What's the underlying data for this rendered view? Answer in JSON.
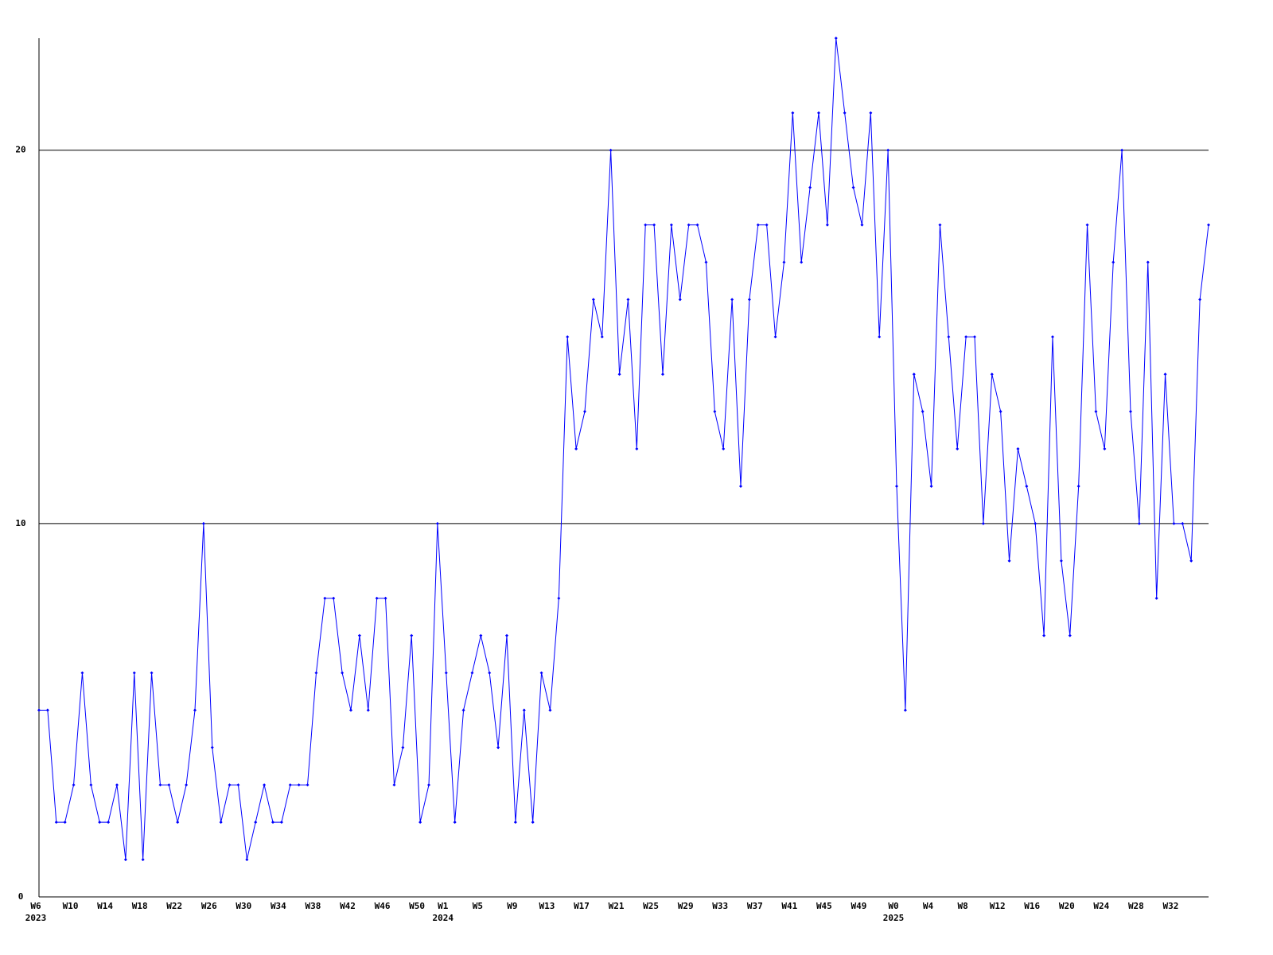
{
  "chart_data": {
    "type": "line",
    "categories": [
      "W6",
      null,
      null,
      null,
      "W10",
      null,
      null,
      null,
      "W14",
      null,
      null,
      null,
      "W18",
      null,
      null,
      null,
      "W22",
      null,
      null,
      null,
      "W26",
      null,
      null,
      null,
      "W30",
      null,
      null,
      null,
      "W34",
      null,
      null,
      null,
      "W38",
      null,
      null,
      null,
      "W42",
      null,
      null,
      null,
      "W46",
      null,
      null,
      null,
      "W50",
      null,
      null,
      "W1",
      null,
      null,
      null,
      "W5",
      null,
      null,
      null,
      "W9",
      null,
      null,
      null,
      "W13",
      null,
      null,
      null,
      "W17",
      null,
      null,
      null,
      "W21",
      null,
      null,
      null,
      "W25",
      null,
      null,
      null,
      "W29",
      null,
      null,
      null,
      "W33",
      null,
      null,
      null,
      "W37",
      null,
      null,
      null,
      "W41",
      null,
      null,
      null,
      "W45",
      null,
      null,
      null,
      "W49",
      null,
      null,
      null,
      "W0",
      null,
      null,
      null,
      "W4",
      null,
      null,
      null,
      "W8",
      null,
      null,
      null,
      "W12",
      null,
      null,
      null,
      "W16",
      null,
      null,
      null,
      "W20",
      null,
      null,
      null,
      "W24",
      null,
      null,
      null,
      "W28",
      null,
      null,
      null,
      "W32",
      null,
      null,
      null,
      null
    ],
    "years": [
      "2023",
      null,
      null,
      null,
      null,
      null,
      null,
      null,
      null,
      null,
      null,
      null,
      null,
      null,
      null,
      null,
      null,
      null,
      null,
      null,
      null,
      null,
      null,
      null,
      null,
      null,
      null,
      null,
      null,
      null,
      null,
      null,
      null,
      null,
      null,
      null,
      null,
      null,
      null,
      null,
      null,
      null,
      null,
      null,
      null,
      null,
      null,
      "2024",
      null,
      null,
      null,
      null,
      null,
      null,
      null,
      null,
      null,
      null,
      null,
      null,
      null,
      null,
      null,
      null,
      null,
      null,
      null,
      null,
      null,
      null,
      null,
      null,
      null,
      null,
      null,
      null,
      null,
      null,
      null,
      null,
      null,
      null,
      null,
      null,
      null,
      null,
      null,
      null,
      null,
      null,
      null,
      null,
      null,
      null,
      null,
      null,
      null,
      null,
      null,
      "2025",
      null,
      null,
      null,
      null,
      null,
      null,
      null,
      null,
      null,
      null,
      null,
      null,
      null,
      null,
      null,
      null,
      null,
      null,
      null,
      null,
      null,
      null,
      null,
      null,
      null,
      null,
      null,
      null,
      null,
      null,
      null,
      null,
      null,
      null,
      null,
      null
    ],
    "series": [
      {
        "color": "#0000ff",
        "values": [
          5,
          5,
          2,
          2,
          3,
          6,
          3,
          2,
          2,
          3,
          1,
          6,
          1,
          6,
          3,
          3,
          2,
          3,
          5,
          10,
          4,
          2,
          3,
          3,
          1,
          2,
          3,
          2,
          2,
          3,
          3,
          3,
          6,
          8,
          8,
          6,
          5,
          7,
          5,
          8,
          8,
          3,
          4,
          7,
          2,
          3,
          10,
          6,
          2,
          5,
          6,
          7,
          6,
          4,
          7,
          2,
          5,
          2,
          6,
          5,
          8,
          15,
          12,
          13,
          16,
          15,
          20,
          14,
          16,
          12,
          18,
          18,
          14,
          18,
          16,
          18,
          18,
          17,
          13,
          12,
          16,
          11,
          16,
          18,
          18,
          15,
          17,
          21,
          17,
          19,
          21,
          18,
          23,
          21,
          19,
          18,
          21,
          15,
          20,
          11,
          5,
          14,
          13,
          11,
          18,
          15,
          12,
          15,
          15,
          10,
          14,
          13,
          9,
          12,
          11,
          10,
          7,
          15,
          9,
          7,
          11,
          18,
          13,
          12,
          17,
          20,
          13,
          10,
          17,
          8,
          14,
          10,
          10,
          9,
          16,
          18
        ]
      }
    ],
    "ylim": [
      0,
      23
    ],
    "yticks": [
      0,
      10,
      20
    ],
    "grid": true
  }
}
